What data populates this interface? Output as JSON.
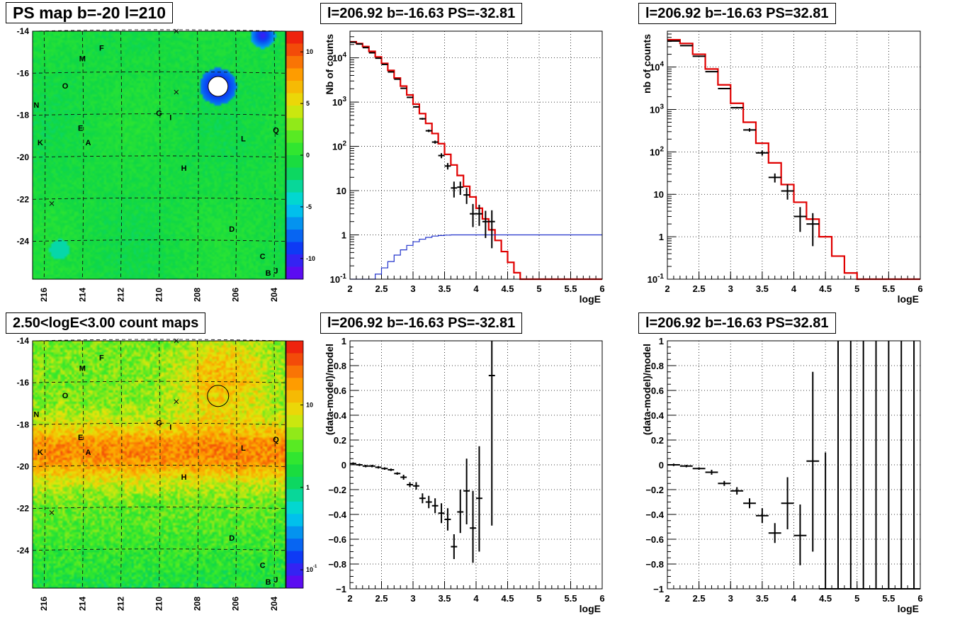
{
  "titles": {
    "map_top": "PS map b=-20 l=210",
    "map_bottom": "2.50<logE<3.00 count maps",
    "spec_left": "l=206.92 b=-16.63 PS=-32.81",
    "spec_right": "l=206.92 b=-16.63 PS=32.81",
    "resid_left": "l=206.92 b=-16.63 PS=-32.81",
    "resid_right": "l=206.92 b=-16.63 PS=32.81"
  },
  "colors": {
    "model": "#e00000",
    "exposure": "#2233cc",
    "data": "#000000",
    "grid": "#000000"
  },
  "chart_data": [
    {
      "type": "heatmap",
      "title": "PS map b=-20 l=210",
      "xlim": [
        216.6,
        203.4
      ],
      "ylim": [
        -25.8,
        -14
      ],
      "xticks": [
        216,
        214,
        212,
        210,
        208,
        206,
        204
      ],
      "xtick_labels": [
        "216",
        "214",
        "212",
        "210",
        "208",
        "206",
        "204"
      ],
      "yticks": [
        -14,
        -16,
        -18,
        -20,
        -22,
        -24
      ],
      "ytick_labels": [
        "-14",
        "-16",
        "-18",
        "-20",
        "-22",
        "-24"
      ],
      "colorbar": {
        "scale": "linear",
        "range": [
          -12,
          12
        ],
        "ticks": [
          -10,
          -5,
          0,
          5,
          10
        ],
        "tick_labels": [
          "-10",
          "-5",
          "0",
          "5",
          "10"
        ]
      },
      "sources": [
        {
          "name": "F",
          "l": 213.0,
          "b": -14.8
        },
        {
          "name": "M",
          "l": 214.0,
          "b": -15.3
        },
        {
          "name": "O",
          "l": 214.9,
          "b": -16.6
        },
        {
          "name": "N",
          "l": 216.4,
          "b": -17.5
        },
        {
          "name": "G",
          "l": 210.0,
          "b": -17.9
        },
        {
          "name": "I",
          "l": 209.4,
          "b": -18.1
        },
        {
          "name": "E",
          "l": 214.1,
          "b": -18.6
        },
        {
          "name": "Q",
          "l": 203.9,
          "b": -18.7
        },
        {
          "name": "L",
          "l": 205.6,
          "b": -19.1
        },
        {
          "name": "K",
          "l": 216.2,
          "b": -19.3
        },
        {
          "name": "A",
          "l": 213.7,
          "b": -19.3
        },
        {
          "name": "H",
          "l": 208.7,
          "b": -20.5
        },
        {
          "name": "D",
          "l": 206.2,
          "b": -23.4
        },
        {
          "name": "C",
          "l": 204.6,
          "b": -24.7
        },
        {
          "name": "J",
          "l": 203.9,
          "b": -25.4
        },
        {
          "name": "B",
          "l": 204.3,
          "b": -25.5
        }
      ],
      "crosses": [
        {
          "l": 209.1,
          "b": -14.0
        },
        {
          "l": 209.1,
          "b": -16.9
        },
        {
          "l": 215.6,
          "b": -22.2
        }
      ],
      "circle": {
        "l": 206.92,
        "b": -16.63
      }
    },
    {
      "type": "heatmap",
      "title": "2.50<logE<3.00 count maps",
      "xlim": [
        216.6,
        203.4
      ],
      "ylim": [
        -25.8,
        -14
      ],
      "xticks": [
        216,
        214,
        212,
        210,
        208,
        206,
        204
      ],
      "xtick_labels": [
        "216",
        "214",
        "212",
        "210",
        "208",
        "206",
        "204"
      ],
      "yticks": [
        -14,
        -16,
        -18,
        -20,
        -22,
        -24
      ],
      "ytick_labels": [
        "-14",
        "-16",
        "-18",
        "-20",
        "-22",
        "-24"
      ],
      "colorbar": {
        "scale": "log",
        "range": [
          0.06,
          60
        ],
        "ticks": [
          0.1,
          1,
          10
        ],
        "tick_labels": [
          "10^-1",
          "1",
          "10"
        ]
      },
      "sources": [
        {
          "name": "F",
          "l": 213.0,
          "b": -14.8
        },
        {
          "name": "M",
          "l": 214.0,
          "b": -15.3
        },
        {
          "name": "O",
          "l": 214.9,
          "b": -16.6
        },
        {
          "name": "N",
          "l": 216.4,
          "b": -17.5
        },
        {
          "name": "G",
          "l": 210.0,
          "b": -17.9
        },
        {
          "name": "I",
          "l": 209.4,
          "b": -18.1
        },
        {
          "name": "E",
          "l": 214.1,
          "b": -18.6
        },
        {
          "name": "Q",
          "l": 203.9,
          "b": -18.7
        },
        {
          "name": "L",
          "l": 205.6,
          "b": -19.1
        },
        {
          "name": "K",
          "l": 216.2,
          "b": -19.3
        },
        {
          "name": "A",
          "l": 213.7,
          "b": -19.3
        },
        {
          "name": "H",
          "l": 208.7,
          "b": -20.5
        },
        {
          "name": "D",
          "l": 206.2,
          "b": -23.4
        },
        {
          "name": "C",
          "l": 204.6,
          "b": -24.7
        },
        {
          "name": "J",
          "l": 203.9,
          "b": -25.4
        },
        {
          "name": "B",
          "l": 204.3,
          "b": -25.5
        }
      ],
      "crosses": [
        {
          "l": 209.1,
          "b": -14.0
        },
        {
          "l": 209.1,
          "b": -16.9
        },
        {
          "l": 215.6,
          "b": -22.2
        }
      ],
      "circle": {
        "l": 206.92,
        "b": -16.63
      }
    },
    {
      "type": "line",
      "title": "l=206.92 b=-16.63 PS=-32.81",
      "xlabel": "logE",
      "ylabel": "Nb of counts",
      "xlim": [
        2,
        6
      ],
      "ylim": [
        0.1,
        40000
      ],
      "yscale": "log",
      "grid": true,
      "xticks": [
        2,
        2.5,
        3,
        3.5,
        4,
        4.5,
        5,
        5.5,
        6
      ],
      "xtick_labels": [
        "2",
        "2.5",
        "3",
        "3.5",
        "4",
        "4.5",
        "5",
        "5.5",
        "6"
      ],
      "yticks": [
        0.1,
        1,
        10,
        100,
        1000,
        10000
      ],
      "ytick_labels": [
        "10^-1",
        "1",
        "10",
        "10^2",
        "10^3",
        "10^4"
      ],
      "series": [
        {
          "style": "step",
          "bin_edges": [
            2.0,
            2.1,
            2.2,
            2.3,
            2.4,
            2.5,
            2.6,
            2.7,
            2.8,
            2.9,
            3.0,
            3.1,
            3.2,
            3.3,
            3.4,
            3.5,
            3.6,
            3.7,
            3.8,
            3.9,
            4.0,
            4.1,
            4.2,
            4.3,
            4.4,
            4.5,
            4.6,
            4.7,
            4.8,
            4.9,
            5.0,
            5.2,
            5.4,
            5.6,
            5.8,
            6.0
          ],
          "values": [
            23000,
            21000,
            18000,
            14000,
            10500,
            7500,
            5200,
            3500,
            2300,
            1450,
            900,
            550,
            330,
            195,
            115,
            66,
            38,
            22,
            12.5,
            7.2,
            4.0,
            2.3,
            1.3,
            0.75,
            0.42,
            0.24,
            0.14,
            0.1,
            0.1,
            0.1,
            0.1,
            0.1,
            0.1,
            0.1,
            0.1
          ]
        },
        {
          "style": "step",
          "bin_edges": [
            2.0,
            2.1,
            2.2,
            2.3,
            2.4,
            2.5,
            2.6,
            2.7,
            2.8,
            2.9,
            3.0,
            3.1,
            3.2,
            3.3,
            3.4,
            3.5,
            3.6,
            3.7,
            3.8,
            3.9,
            4.0,
            4.1,
            4.2,
            4.3,
            4.4,
            4.5,
            4.6,
            4.7,
            4.8,
            4.9,
            5.0,
            5.2,
            5.4,
            5.6,
            5.8,
            6.0
          ],
          "values": [
            0.1,
            0.1,
            0.1,
            0.1,
            0.13,
            0.18,
            0.25,
            0.35,
            0.46,
            0.58,
            0.7,
            0.8,
            0.88,
            0.94,
            0.97,
            0.99,
            1.0,
            1.0,
            1.0,
            1.0,
            1.0,
            1.0,
            1.0,
            1.0,
            1.0,
            1.0,
            1.0,
            1.0,
            1.0,
            1.0,
            1.0,
            1.0,
            1.0,
            1.0,
            1.0
          ]
        },
        {
          "style": "errorbar",
          "x": [
            2.05,
            2.15,
            2.25,
            2.35,
            2.45,
            2.55,
            2.65,
            2.75,
            2.85,
            2.95,
            3.05,
            3.15,
            3.25,
            3.35,
            3.45,
            3.55,
            3.65,
            3.75,
            3.85,
            3.95,
            4.05,
            4.15,
            4.25
          ],
          "y": [
            22500,
            20500,
            17000,
            13000,
            9800,
            7100,
            4800,
            3300,
            2050,
            1280,
            780,
            420,
            225,
            125,
            62,
            36,
            11.5,
            12,
            8,
            3.0,
            3.0,
            2.0,
            2.0
          ],
          "xerr": 0.05,
          "ylo": [
            22300,
            20300,
            16800,
            12900,
            9700,
            7000,
            4700,
            3230,
            2000,
            1240,
            750,
            400,
            210,
            115,
            54,
            30,
            7,
            8,
            5,
            1.5,
            1.6,
            0.85,
            0.5
          ],
          "yhi": [
            22700,
            20700,
            17200,
            13100,
            9900,
            7200,
            4900,
            3370,
            2100,
            1320,
            810,
            440,
            240,
            135,
            70,
            42,
            16,
            16,
            11.5,
            5,
            4.8,
            3.5,
            3.6
          ]
        }
      ]
    },
    {
      "type": "line",
      "title": "l=206.92 b=-16.63 PS=32.81",
      "xlabel": "logE",
      "ylabel": "nb of counts",
      "xlim": [
        2,
        6
      ],
      "ylim": [
        0.1,
        70000
      ],
      "yscale": "log",
      "grid": true,
      "xticks": [
        2,
        2.5,
        3,
        3.5,
        4,
        4.5,
        5,
        5.5,
        6
      ],
      "xtick_labels": [
        "2",
        "2.5",
        "3",
        "3.5",
        "4",
        "4.5",
        "5",
        "5.5",
        "6"
      ],
      "yticks": [
        0.1,
        1,
        10,
        100,
        1000,
        10000
      ],
      "ytick_labels": [
        "10^-1",
        "1",
        "10",
        "10^2",
        "10^3",
        "10^4"
      ],
      "series": [
        {
          "style": "step",
          "bin_edges": [
            2.0,
            2.2,
            2.4,
            2.6,
            2.8,
            3.0,
            3.2,
            3.4,
            3.6,
            3.8,
            4.0,
            4.2,
            4.4,
            4.6,
            4.8,
            5.0,
            5.2,
            5.4,
            5.6,
            5.8,
            6.0
          ],
          "values": [
            44000,
            36000,
            20000,
            9000,
            3800,
            1400,
            500,
            160,
            55,
            17,
            6.5,
            2.6,
            1.0,
            0.35,
            0.14,
            0.1,
            0.1,
            0.1,
            0.1,
            0.1
          ]
        },
        {
          "style": "errorbar",
          "x": [
            2.1,
            2.3,
            2.5,
            2.7,
            2.9,
            3.1,
            3.3,
            3.5,
            3.7,
            3.9,
            4.1,
            4.3
          ],
          "y": [
            41000,
            32000,
            18000,
            7800,
            3100,
            1100,
            330,
            95,
            25,
            12,
            3.0,
            2.0
          ],
          "xerr": 0.1,
          "ylo": [
            40600,
            31700,
            17800,
            7650,
            3000,
            1050,
            300,
            82,
            19,
            7.5,
            1.3,
            0.6
          ],
          "yhi": [
            41400,
            32300,
            18200,
            7950,
            3200,
            1150,
            360,
            108,
            31,
            17,
            5.0,
            3.6
          ]
        }
      ]
    },
    {
      "type": "scatter",
      "title": "l=206.92 b=-16.63 PS=-32.81",
      "xlabel": "logE",
      "ylabel": "(data-model)/model",
      "xlim": [
        2,
        6
      ],
      "ylim": [
        -1,
        1
      ],
      "grid": true,
      "xticks": [
        2,
        2.5,
        3,
        3.5,
        4,
        4.5,
        5,
        5.5,
        6
      ],
      "xtick_labels": [
        "2",
        "2.5",
        "3",
        "3.5",
        "4",
        "4.5",
        "5",
        "5.5",
        "6"
      ],
      "yticks": [
        -1,
        -0.8,
        -0.6,
        -0.4,
        -0.2,
        0,
        0.2,
        0.4,
        0.6,
        0.8,
        1
      ],
      "ytick_labels": [
        "−1",
        "−0.8",
        "−0.6",
        "−0.4",
        "−0.2",
        "0",
        "0.2",
        "0.4",
        "0.6",
        "0.8",
        "1"
      ],
      "series": [
        {
          "style": "errorbar",
          "x": [
            2.05,
            2.15,
            2.25,
            2.35,
            2.45,
            2.55,
            2.65,
            2.75,
            2.85,
            2.95,
            3.05,
            3.15,
            3.25,
            3.35,
            3.45,
            3.55,
            3.65,
            3.75,
            3.85,
            3.95,
            4.05,
            4.25
          ],
          "y": [
            0.01,
            0,
            -0.01,
            -0.01,
            -0.02,
            -0.03,
            -0.04,
            -0.07,
            -0.1,
            -0.16,
            -0.17,
            -0.27,
            -0.3,
            -0.33,
            -0.39,
            -0.44,
            -0.66,
            -0.38,
            -0.21,
            -0.51,
            -0.27,
            0.72
          ],
          "xerr": 0.05,
          "ylo": [
            0,
            -0.01,
            -0.02,
            -0.02,
            -0.03,
            -0.04,
            -0.05,
            -0.08,
            -0.12,
            -0.18,
            -0.2,
            -0.31,
            -0.35,
            -0.39,
            -0.47,
            -0.53,
            -0.76,
            -0.55,
            -0.48,
            -0.79,
            -0.7,
            -0.49
          ],
          "yhi": [
            0.02,
            0.01,
            0,
            0,
            -0.01,
            -0.02,
            -0.03,
            -0.06,
            -0.08,
            -0.14,
            -0.14,
            -0.23,
            -0.25,
            -0.27,
            -0.31,
            -0.35,
            -0.56,
            -0.2,
            0.05,
            -0.21,
            0.15,
            1.0
          ]
        }
      ]
    },
    {
      "type": "scatter",
      "title": "l=206.92 b=-16.63 PS=32.81",
      "xlabel": "logE",
      "ylabel": "(data-model)/model",
      "xlim": [
        2,
        6
      ],
      "ylim": [
        -1,
        1
      ],
      "grid": true,
      "xticks": [
        2,
        2.5,
        3,
        3.5,
        4,
        4.5,
        5,
        5.5,
        6
      ],
      "xtick_labels": [
        "2",
        "2.5",
        "3",
        "3.5",
        "4",
        "4.5",
        "5",
        "5.5",
        "6"
      ],
      "yticks": [
        -1,
        -0.8,
        -0.6,
        -0.4,
        -0.2,
        0,
        0.2,
        0.4,
        0.6,
        0.8,
        1
      ],
      "ytick_labels": [
        "−1",
        "−0.8",
        "−0.6",
        "−0.4",
        "−0.2",
        "0",
        "0.2",
        "0.4",
        "0.6",
        "0.8",
        "1"
      ],
      "series": [
        {
          "style": "errorbar",
          "x": [
            2.1,
            2.3,
            2.5,
            2.7,
            2.9,
            3.1,
            3.3,
            3.5,
            3.7,
            3.9,
            4.1,
            4.3,
            4.5,
            4.7,
            4.9,
            5.1,
            5.3,
            5.5,
            5.7,
            5.9
          ],
          "y": [
            0,
            -0.01,
            -0.03,
            -0.06,
            -0.15,
            -0.21,
            -0.31,
            -0.41,
            -0.55,
            -0.31,
            -0.57,
            0.03,
            -1,
            -1,
            -1,
            -1,
            -1,
            -1,
            -1,
            -1
          ],
          "xerr": 0.1,
          "ylo": [
            -0.01,
            -0.02,
            -0.04,
            -0.08,
            -0.17,
            -0.24,
            -0.35,
            -0.47,
            -0.63,
            -0.52,
            -0.81,
            -0.7,
            -1,
            -1,
            -1,
            -1,
            -1,
            -1,
            -1,
            -1
          ],
          "yhi": [
            0.01,
            0,
            -0.02,
            -0.04,
            -0.13,
            -0.18,
            -0.27,
            -0.35,
            -0.47,
            -0.1,
            -0.32,
            0.75,
            0.1,
            1,
            1,
            1,
            1,
            1,
            1,
            1
          ]
        }
      ]
    }
  ]
}
